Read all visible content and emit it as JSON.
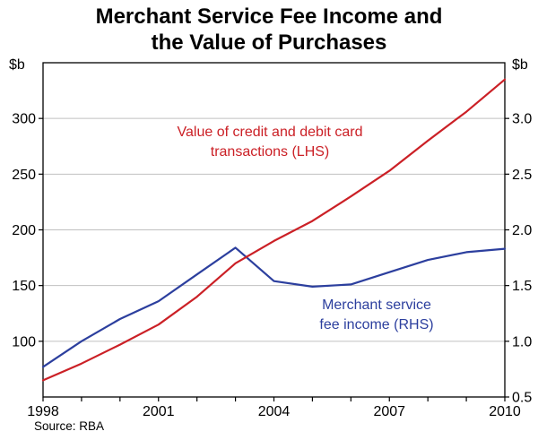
{
  "title": {
    "line1": "Merchant Service Fee Income and",
    "line2": "the Value of Purchases"
  },
  "source": "Source: RBA",
  "chart_data": {
    "type": "line",
    "x": [
      1998,
      1999,
      2000,
      2001,
      2002,
      2003,
      2004,
      2005,
      2006,
      2007,
      2008,
      2009,
      2010
    ],
    "series": [
      {
        "name": "Value of credit and debit card transactions (LHS)",
        "axis": "left",
        "color": "#cb2026",
        "values": [
          65,
          80,
          97,
          115,
          140,
          170,
          190,
          208,
          230,
          253,
          280,
          306,
          335
        ]
      },
      {
        "name": "Merchant service fee income (RHS)",
        "axis": "right",
        "color": "#2c3f9e",
        "values": [
          0.77,
          1.0,
          1.2,
          1.36,
          1.6,
          1.84,
          1.54,
          1.49,
          1.51,
          1.62,
          1.73,
          1.8,
          1.83
        ]
      }
    ],
    "left_axis": {
      "unit": "$b",
      "min": 50,
      "max": 350,
      "ticks": [
        {
          "v": 100,
          "label": "100"
        },
        {
          "v": 150,
          "label": "150"
        },
        {
          "v": 200,
          "label": "200"
        },
        {
          "v": 250,
          "label": "250"
        },
        {
          "v": 300,
          "label": "300"
        }
      ]
    },
    "right_axis": {
      "unit": "$b",
      "min": 0.5,
      "max": 3.5,
      "ticks": [
        {
          "v": 0.5,
          "label": "0.5"
        },
        {
          "v": 1.0,
          "label": "1.0"
        },
        {
          "v": 1.5,
          "label": "1.5"
        },
        {
          "v": 2.0,
          "label": "2.0"
        },
        {
          "v": 2.5,
          "label": "2.5"
        },
        {
          "v": 3.0,
          "label": "3.0"
        }
      ]
    },
    "x_axis": {
      "min": 1998,
      "max": 2010,
      "ticks": [
        {
          "v": 1998,
          "label": "1998"
        },
        {
          "v": 2001,
          "label": "2001"
        },
        {
          "v": 2004,
          "label": "2004"
        },
        {
          "v": 2007,
          "label": "2007"
        },
        {
          "v": 2010,
          "label": "2010"
        }
      ]
    },
    "grid": true,
    "grid_color": "#c0c0c0",
    "legend": "inline-annotations",
    "annotations": [
      {
        "lines": [
          "Value of credit and debit card",
          "transactions (LHS)"
        ],
        "color": "#cb2026"
      },
      {
        "lines": [
          "Merchant service",
          "fee income (RHS)"
        ],
        "color": "#2c3f9e"
      }
    ]
  }
}
